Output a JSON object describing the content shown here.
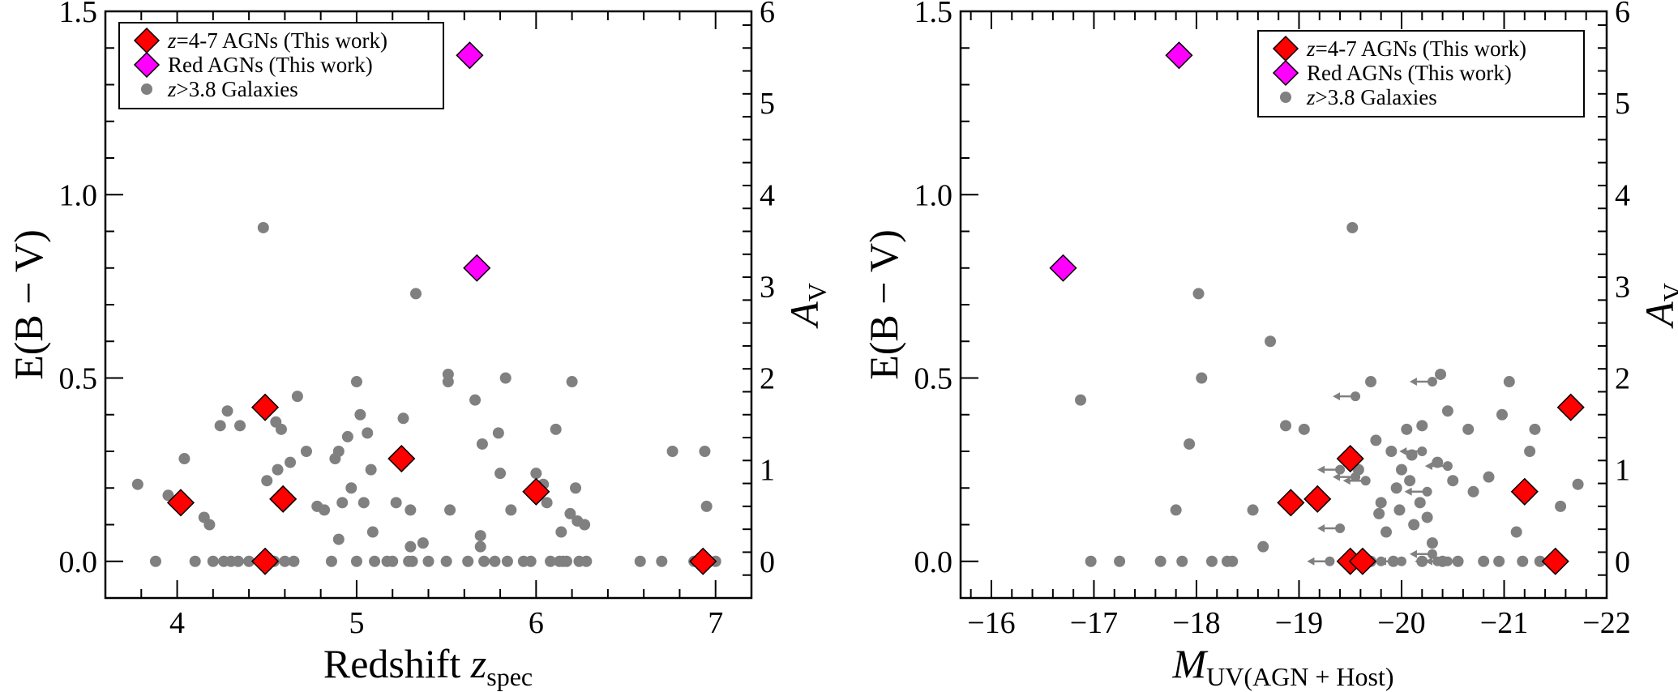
{
  "chart_data": [
    {
      "type": "scatter",
      "xlabel": "Redshift",
      "xlabel_math": "z",
      "xlabel_sub": "spec",
      "ylabel": "E(B − V)",
      "ylabel_right": "A",
      "ylabel_right_sub": "V",
      "xlim": [
        3.6,
        7.2
      ],
      "ylim": [
        -0.1,
        1.5
      ],
      "ylim_right": [
        -0.4,
        6.0
      ],
      "xticks": [
        4,
        5,
        6,
        7
      ],
      "yticks": [
        0.0,
        0.5,
        1.0,
        1.5
      ],
      "yticks_right": [
        0,
        1,
        2,
        3,
        4,
        5,
        6
      ],
      "legend_position": "top-left",
      "legend": [
        {
          "math": "z",
          "label": "=4-7 AGNs (This work)",
          "marker": "diamond",
          "color": "#ff0000"
        },
        {
          "math": "",
          "label": "Red AGNs (This work)",
          "marker": "diamond",
          "color": "#ff00ff"
        },
        {
          "math": "z",
          "label": ">3.8 Galaxies",
          "marker": "circle",
          "color": "#808080"
        }
      ],
      "series": [
        {
          "name": "z=4-7 AGNs (This work)",
          "marker": "diamond",
          "color": "#ff0000",
          "points": [
            [
              4.02,
              0.16
            ],
            [
              4.49,
              0.42
            ],
            [
              4.49,
              0.0
            ],
            [
              4.59,
              0.17
            ],
            [
              5.25,
              0.28
            ],
            [
              6.0,
              0.19
            ],
            [
              6.93,
              0.0
            ]
          ]
        },
        {
          "name": "Red AGNs (This work)",
          "marker": "diamond",
          "color": "#ff00ff",
          "points": [
            [
              5.63,
              1.38
            ],
            [
              5.67,
              0.8
            ]
          ]
        },
        {
          "name": "z>3.8 Galaxies",
          "marker": "circle",
          "color": "#808080",
          "points": [
            [
              3.78,
              0.21
            ],
            [
              3.88,
              0.0
            ],
            [
              3.95,
              0.18
            ],
            [
              4.04,
              0.28
            ],
            [
              4.1,
              0.0
            ],
            [
              4.15,
              0.12
            ],
            [
              4.18,
              0.1
            ],
            [
              4.2,
              0.0
            ],
            [
              4.24,
              0.37
            ],
            [
              4.26,
              0.0
            ],
            [
              4.28,
              0.41
            ],
            [
              4.3,
              0.0
            ],
            [
              4.34,
              0.0
            ],
            [
              4.35,
              0.37
            ],
            [
              4.4,
              0.0
            ],
            [
              4.48,
              0.91
            ],
            [
              4.5,
              0.22
            ],
            [
              4.54,
              0.0
            ],
            [
              4.55,
              0.38
            ],
            [
              4.56,
              0.25
            ],
            [
              4.58,
              0.36
            ],
            [
              4.6,
              0.0
            ],
            [
              4.63,
              0.27
            ],
            [
              4.65,
              0.0
            ],
            [
              4.67,
              0.45
            ],
            [
              4.72,
              0.3
            ],
            [
              4.78,
              0.15
            ],
            [
              4.82,
              0.14
            ],
            [
              4.86,
              0.0
            ],
            [
              4.88,
              0.28
            ],
            [
              4.9,
              0.06
            ],
            [
              4.9,
              0.3
            ],
            [
              4.92,
              0.16
            ],
            [
              4.95,
              0.34
            ],
            [
              4.97,
              0.2
            ],
            [
              5.0,
              0.0
            ],
            [
              5.0,
              0.49
            ],
            [
              5.02,
              0.4
            ],
            [
              5.04,
              0.16
            ],
            [
              5.06,
              0.35
            ],
            [
              5.08,
              0.25
            ],
            [
              5.09,
              0.08
            ],
            [
              5.1,
              0.0
            ],
            [
              5.17,
              0.0
            ],
            [
              5.2,
              0.0
            ],
            [
              5.22,
              0.16
            ],
            [
              5.26,
              0.39
            ],
            [
              5.29,
              0.0
            ],
            [
              5.3,
              0.04
            ],
            [
              5.3,
              0.14
            ],
            [
              5.31,
              0.0
            ],
            [
              5.33,
              0.73
            ],
            [
              5.37,
              0.05
            ],
            [
              5.4,
              0.0
            ],
            [
              5.5,
              0.0
            ],
            [
              5.51,
              0.49
            ],
            [
              5.51,
              0.51
            ],
            [
              5.52,
              0.14
            ],
            [
              5.62,
              0.0
            ],
            [
              5.66,
              0.44
            ],
            [
              5.69,
              0.07
            ],
            [
              5.69,
              0.04
            ],
            [
              5.7,
              0.32
            ],
            [
              5.71,
              0.0
            ],
            [
              5.77,
              0.0
            ],
            [
              5.79,
              0.35
            ],
            [
              5.8,
              0.24
            ],
            [
              5.83,
              0.5
            ],
            [
              5.84,
              0.0
            ],
            [
              5.86,
              0.14
            ],
            [
              5.93,
              0.0
            ],
            [
              5.97,
              0.0
            ],
            [
              6.0,
              0.24
            ],
            [
              6.02,
              0.19
            ],
            [
              6.04,
              0.21
            ],
            [
              6.06,
              0.16
            ],
            [
              6.08,
              0.0
            ],
            [
              6.11,
              0.36
            ],
            [
              6.13,
              0.0
            ],
            [
              6.14,
              0.08
            ],
            [
              6.15,
              0.0
            ],
            [
              6.17,
              0.0
            ],
            [
              6.19,
              0.13
            ],
            [
              6.2,
              0.49
            ],
            [
              6.22,
              0.2
            ],
            [
              6.23,
              0.11
            ],
            [
              6.24,
              0.0
            ],
            [
              6.27,
              0.1
            ],
            [
              6.28,
              0.0
            ],
            [
              6.58,
              0.0
            ],
            [
              6.7,
              0.0
            ],
            [
              6.76,
              0.3
            ],
            [
              6.88,
              0.0
            ],
            [
              6.94,
              0.3
            ],
            [
              6.95,
              0.15
            ],
            [
              7.0,
              0.0
            ]
          ]
        }
      ]
    },
    {
      "type": "scatter",
      "xlabel": "M",
      "xlabel_sub": "UV(AGN + Host)",
      "ylabel": "E(B − V)",
      "ylabel_right": "A",
      "ylabel_right_sub": "V",
      "xlim": [
        -15.7,
        -22.0
      ],
      "ylim": [
        -0.1,
        1.5
      ],
      "ylim_right": [
        -0.4,
        6.0
      ],
      "xticks": [
        -16,
        -17,
        -18,
        -19,
        -20,
        -21,
        -22
      ],
      "xtick_labels": [
        "−16",
        "−17",
        "−18",
        "−19",
        "−20",
        "−21",
        "−22"
      ],
      "yticks": [
        0.0,
        0.5,
        1.0,
        1.5
      ],
      "yticks_right": [
        0,
        1,
        2,
        3,
        4,
        5,
        6
      ],
      "legend_position": "top-right",
      "legend": [
        {
          "math": "z",
          "label": "=4-7 AGNs (This work)",
          "marker": "diamond",
          "color": "#ff0000"
        },
        {
          "math": "",
          "label": "Red AGNs (This work)",
          "marker": "diamond",
          "color": "#ff00ff"
        },
        {
          "math": "z",
          "label": ">3.8 Galaxies",
          "marker": "circle",
          "color": "#808080"
        }
      ],
      "series": [
        {
          "name": "z=4-7 AGNs (This work)",
          "marker": "diamond",
          "color": "#ff0000",
          "points": [
            [
              -18.92,
              0.16
            ],
            [
              -19.18,
              0.17
            ],
            [
              -19.5,
              0.28
            ],
            [
              -19.5,
              0.0
            ],
            [
              -19.62,
              0.0
            ],
            [
              -21.2,
              0.19
            ],
            [
              -21.5,
              0.0
            ],
            [
              -21.65,
              0.42
            ]
          ]
        },
        {
          "name": "Red AGNs (This work)",
          "marker": "diamond",
          "color": "#ff00ff",
          "points": [
            [
              -16.7,
              0.8
            ],
            [
              -17.83,
              1.38
            ]
          ]
        },
        {
          "name": "z>3.8 Galaxies",
          "marker": "circle",
          "color": "#808080",
          "points": [
            [
              -16.87,
              0.44
            ],
            [
              -16.97,
              0.0
            ],
            [
              -17.25,
              0.0
            ],
            [
              -17.65,
              0.0
            ],
            [
              -17.8,
              0.14
            ],
            [
              -17.86,
              0.0
            ],
            [
              -17.93,
              0.32
            ],
            [
              -18.02,
              0.73
            ],
            [
              -18.05,
              0.5
            ],
            [
              -18.15,
              0.0
            ],
            [
              -18.3,
              0.0
            ],
            [
              -18.35,
              0.0
            ],
            [
              -18.55,
              0.14
            ],
            [
              -18.65,
              0.04
            ],
            [
              -18.72,
              0.6
            ],
            [
              -18.87,
              0.37
            ],
            [
              -19.05,
              0.36
            ],
            [
              -19.52,
              0.91
            ],
            [
              -19.58,
              0.25
            ],
            [
              -19.7,
              0.49
            ],
            [
              -19.75,
              0.33
            ],
            [
              -19.8,
              0.16
            ],
            [
              -19.9,
              0.3
            ],
            [
              -20.0,
              0.25
            ],
            [
              -20.05,
              0.36
            ],
            [
              -20.18,
              0.16
            ],
            [
              -20.2,
              0.37
            ],
            [
              -20.35,
              0.27
            ],
            [
              -20.45,
              0.41
            ],
            [
              -20.5,
              0.22
            ],
            [
              -20.55,
              0.0
            ],
            [
              -20.65,
              0.36
            ],
            [
              -20.7,
              0.19
            ],
            [
              -20.8,
              0.0
            ],
            [
              -20.85,
              0.23
            ],
            [
              -20.95,
              0.0
            ],
            [
              -20.98,
              0.4
            ],
            [
              -21.05,
              0.49
            ],
            [
              -21.12,
              0.08
            ],
            [
              -21.18,
              0.0
            ],
            [
              -21.25,
              0.3
            ],
            [
              -21.3,
              0.36
            ],
            [
              -21.35,
              0.0
            ],
            [
              -21.55,
              0.15
            ],
            [
              -21.72,
              0.21
            ],
            [
              -19.95,
              0.2
            ],
            [
              -19.85,
              0.08
            ],
            [
              -20.12,
              0.1
            ],
            [
              -20.25,
              0.12
            ],
            [
              -20.3,
              0.05
            ],
            [
              -19.98,
              0.14
            ],
            [
              -20.08,
              0.22
            ],
            [
              -20.4,
              0.0
            ],
            [
              -20.2,
              0.0
            ],
            [
              -19.92,
              0.0
            ],
            [
              -19.7,
              0.0
            ],
            [
              -19.78,
              0.13
            ],
            [
              -20.1,
              0.29
            ],
            [
              -20.38,
              0.51
            ]
          ]
        },
        {
          "name": "",
          "marker": "circle-upper-limit",
          "color": "#808080",
          "points": [
            [
              -19.55,
              0.45
            ],
            [
              -19.4,
              0.25
            ],
            [
              -19.55,
              0.23
            ],
            [
              -19.4,
              0.09
            ],
            [
              -20.3,
              0.49
            ],
            [
              -20.2,
              0.3
            ],
            [
              -20.25,
              0.19
            ],
            [
              -20.3,
              0.02
            ],
            [
              -19.3,
              0.0
            ],
            [
              -19.6,
              0.0
            ],
            [
              -19.8,
              0.0
            ],
            [
              -20.0,
              0.0
            ],
            [
              -20.35,
              0.0
            ],
            [
              -20.45,
              0.0
            ],
            [
              -20.45,
              0.26
            ],
            [
              -19.65,
              0.22
            ]
          ]
        }
      ]
    }
  ]
}
